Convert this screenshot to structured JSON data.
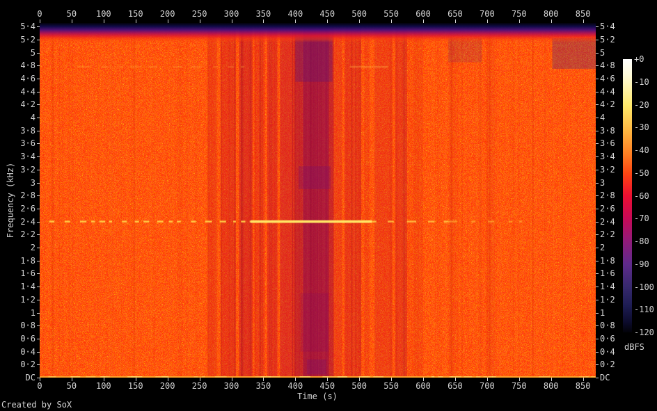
{
  "credit": "Created by SoX",
  "chart_data": {
    "type": "heatmap",
    "subtype": "audio-spectrogram",
    "title": "",
    "xlabel": "Time (s)",
    "ylabel": "Frequency (kHz)",
    "x_range_s": [
      0,
      870
    ],
    "x_ticks_s": [
      0,
      50,
      100,
      150,
      200,
      250,
      300,
      350,
      400,
      450,
      500,
      550,
      600,
      650,
      700,
      750,
      800,
      850
    ],
    "y_range_khz": [
      0,
      5.455
    ],
    "y_tick_values_khz": [
      5.4,
      5.2,
      5.0,
      4.8,
      4.6,
      4.4,
      4.2,
      4.0,
      3.8,
      3.6,
      3.4,
      3.2,
      3.0,
      2.8,
      2.6,
      2.4,
      2.2,
      2.0,
      1.8,
      1.6,
      1.4,
      1.2,
      1.0,
      0.8,
      0.6,
      0.4,
      0.2,
      0
    ],
    "y_tick_labels": [
      "5·4",
      "5·2",
      "5",
      "4·8",
      "4·6",
      "4·4",
      "4·2",
      "4",
      "3·8",
      "3·6",
      "3·4",
      "3·2",
      "3",
      "2·8",
      "2·6",
      "2·4",
      "2·2",
      "2",
      "1·8",
      "1·6",
      "1·4",
      "1·2",
      "1",
      "0·8",
      "0·6",
      "0·4",
      "0·2",
      "DC"
    ],
    "grid": false,
    "legend_position": "right-colorbar",
    "colorbar": {
      "label": "dBFS",
      "tick_labels": [
        "+0",
        "-10",
        "-20",
        "-30",
        "-40",
        "-50",
        "-60",
        "-70",
        "-80",
        "-90",
        "-100",
        "-110",
        "-120"
      ],
      "tick_values_db": [
        0,
        -10,
        -20,
        -30,
        -40,
        -50,
        -60,
        -70,
        -80,
        -90,
        -100,
        -110,
        -120
      ],
      "gradient_stops": [
        {
          "pos": 0.0,
          "color": "#ffffff"
        },
        {
          "pos": 0.06,
          "color": "#fffbd8"
        },
        {
          "pos": 0.17,
          "color": "#ffe96a"
        },
        {
          "pos": 0.27,
          "color": "#ffb23e"
        },
        {
          "pos": 0.35,
          "color": "#ff7d22"
        },
        {
          "pos": 0.42,
          "color": "#fc4412"
        },
        {
          "pos": 0.5,
          "color": "#ec0f31"
        },
        {
          "pos": 0.58,
          "color": "#c80955"
        },
        {
          "pos": 0.66,
          "color": "#951a78"
        },
        {
          "pos": 0.75,
          "color": "#5f2a8c"
        },
        {
          "pos": 0.83,
          "color": "#38296f"
        },
        {
          "pos": 0.9,
          "color": "#1e1d54"
        },
        {
          "pos": 0.96,
          "color": "#0d0c2e"
        },
        {
          "pos": 1.0,
          "color": "#020208"
        }
      ]
    },
    "features": [
      "Broadband noise floor near -45 dBFS (orange) covering 0-870 s from DC to ~5.2 kHz",
      "Steep low-pass rolloff above ~5.25 kHz dropping below -110 dBFS at the 5.45 kHz top edge (black/indigo band)",
      "Continuous tonal component at 2.4 kHz: intermittent 15-330 s, strong ~-25 dBFS 330-520 s, fading dashes to ~770 s",
      "Weak tone near 4.8 kHz from ~60-320 s and ~485-545 s",
      "Quieter passage centered 400-460 s (down to ~-65 dBFS, crimson/purple) with narrower dips 265-400 s and 460-600 s",
      "Thin DC energy line along the bottom edge for the full duration"
    ],
    "render": {
      "base_noise": {
        "g_min": 58,
        "g_spread": 55,
        "b_max": 26,
        "speckle_chance": 0.03,
        "speckle_boost": 38
      },
      "streaks": {
        "count": 280,
        "light": "255,140,40",
        "dark": "205,25,10",
        "max_alpha": 0.1
      },
      "top_band": {
        "height": 28,
        "stops": [
          {
            "pos": 0.0,
            "color": "rgba(2,2,10,1)"
          },
          {
            "pos": 0.18,
            "color": "rgba(16,10,72,1)"
          },
          {
            "pos": 0.36,
            "color": "rgba(72,14,122,0.95)"
          },
          {
            "pos": 0.52,
            "color": "rgba(162,12,92,0.9)"
          },
          {
            "pos": 0.68,
            "color": "rgba(226,25,45,0.8)"
          },
          {
            "pos": 0.85,
            "color": "rgba(250,62,15,0.45)"
          },
          {
            "pos": 1.0,
            "color": "rgba(250,72,15,0)"
          }
        ]
      },
      "bands": [
        {
          "t0": 263,
          "t1": 277,
          "color": "rgba(205,10,30,0.28)"
        },
        {
          "t0": 283,
          "t1": 307,
          "color": "rgba(200,8,35,0.36)"
        },
        {
          "t0": 312,
          "t1": 333,
          "color": "rgba(190,8,45,0.44)"
        },
        {
          "t0": 336,
          "t1": 352,
          "color": "rgba(205,10,35,0.30)"
        },
        {
          "t0": 356,
          "t1": 372,
          "color": "rgba(195,8,45,0.40)"
        },
        {
          "t0": 376,
          "t1": 400,
          "color": "rgba(190,10,50,0.45)"
        },
        {
          "t0": 400,
          "t1": 460,
          "color": "rgba(165,8,60,0.55)"
        },
        {
          "t0": 412,
          "t1": 452,
          "color": "rgba(140,12,85,0.42)"
        },
        {
          "t0": 460,
          "t1": 473,
          "color": "rgba(205,15,40,0.28)"
        },
        {
          "t0": 477,
          "t1": 503,
          "color": "rgba(200,10,40,0.36)"
        },
        {
          "t0": 508,
          "t1": 516,
          "color": "rgba(210,20,30,0.20)"
        },
        {
          "t0": 524,
          "t1": 552,
          "color": "rgba(205,15,35,0.28)"
        },
        {
          "t0": 556,
          "t1": 575,
          "color": "rgba(200,12,40,0.32)"
        },
        {
          "t0": 584,
          "t1": 600,
          "color": "rgba(215,30,25,0.16)"
        },
        {
          "t0": 640,
          "t1": 652,
          "color": "rgba(215,35,25,0.12)"
        },
        {
          "t0": 700,
          "t1": 712,
          "color": "rgba(215,35,25,0.12)"
        }
      ],
      "patches": [
        {
          "t0": 405,
          "t1": 455,
          "f0": 2.9,
          "f1": 3.25,
          "color": "rgba(120,15,110,0.30)"
        },
        {
          "t0": 408,
          "t1": 452,
          "f0": 0.4,
          "f1": 1.3,
          "color": "rgba(130,12,100,0.20)"
        },
        {
          "t0": 418,
          "t1": 448,
          "f0": 0.05,
          "f1": 0.28,
          "color": "rgba(110,15,115,0.28)"
        },
        {
          "t0": 400,
          "t1": 458,
          "f0": 4.55,
          "f1": 5.25,
          "color": "rgba(90,20,120,0.32)"
        },
        {
          "t0": 802,
          "t1": 870,
          "f0": 4.75,
          "f1": 5.22,
          "color": "rgba(70,30,130,0.30)"
        },
        {
          "t0": 639,
          "t1": 692,
          "f0": 4.85,
          "f1": 5.22,
          "color": "rgba(80,30,125,0.16)"
        }
      ],
      "h_lines": [
        {
          "f": 2.4,
          "t0": 15,
          "t1": 330,
          "color": "255,205,70",
          "alpha": 0.85,
          "w": 2,
          "dash": [
            7,
            10
          ]
        },
        {
          "f": 2.4,
          "t0": 330,
          "t1": 520,
          "color": "255,228,100",
          "alpha": 1,
          "w": 3,
          "dash": null
        },
        {
          "f": 2.4,
          "t0": 520,
          "t1": 640,
          "color": "255,200,70",
          "alpha": 0.7,
          "w": 2,
          "dash": [
            10,
            14
          ]
        },
        {
          "f": 2.4,
          "t0": 640,
          "t1": 770,
          "color": "255,190,60",
          "alpha": 0.45,
          "w": 2,
          "dash": [
            8,
            18
          ]
        },
        {
          "f": 4.78,
          "t0": 60,
          "t1": 320,
          "color": "255,170,60",
          "alpha": 0.4,
          "w": 1,
          "dash": [
            12,
            16
          ]
        },
        {
          "f": 4.78,
          "t0": 485,
          "t1": 545,
          "color": "255,180,70",
          "alpha": 0.5,
          "w": 1,
          "dash": null
        }
      ],
      "dc_line": {
        "color": "255,170,45",
        "alpha": 0.9,
        "h": 2
      }
    }
  }
}
